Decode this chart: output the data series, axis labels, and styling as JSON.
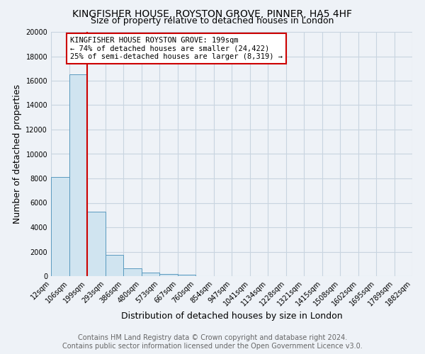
{
  "title": "KINGFISHER HOUSE, ROYSTON GROVE, PINNER, HA5 4HF",
  "subtitle": "Size of property relative to detached houses in London",
  "xlabel": "Distribution of detached houses by size in London",
  "ylabel": "Number of detached properties",
  "bar_values": [
    8100,
    16500,
    5300,
    1750,
    650,
    300,
    150,
    100,
    0,
    0,
    0,
    0,
    0,
    0,
    0,
    0,
    0,
    0,
    0,
    0
  ],
  "bin_edges": [
    12,
    106,
    199,
    293,
    386,
    480,
    573,
    667,
    760,
    854,
    947,
    1041,
    1134,
    1228,
    1321,
    1415,
    1508,
    1602,
    1695,
    1789,
    1882
  ],
  "tick_labels": [
    "12sqm",
    "106sqm",
    "199sqm",
    "293sqm",
    "386sqm",
    "480sqm",
    "573sqm",
    "667sqm",
    "760sqm",
    "854sqm",
    "947sqm",
    "1041sqm",
    "1134sqm",
    "1228sqm",
    "1321sqm",
    "1415sqm",
    "1508sqm",
    "1602sqm",
    "1695sqm",
    "1789sqm",
    "1882sqm"
  ],
  "bar_color": "#d0e4f0",
  "bar_edge_color": "#5a9abf",
  "property_value": 199,
  "property_label": "KINGFISHER HOUSE ROYSTON GROVE: 199sqm",
  "annotation_line1": "← 74% of detached houses are smaller (24,422)",
  "annotation_line2": "25% of semi-detached houses are larger (8,319) →",
  "annotation_box_color": "#ffffff",
  "annotation_box_edge_color": "#cc0000",
  "vline_color": "#cc0000",
  "ylim": [
    0,
    20000
  ],
  "yticks": [
    0,
    2000,
    4000,
    6000,
    8000,
    10000,
    12000,
    14000,
    16000,
    18000,
    20000
  ],
  "footer_line1": "Contains HM Land Registry data © Crown copyright and database right 2024.",
  "footer_line2": "Contains public sector information licensed under the Open Government Licence v3.0.",
  "background_color": "#eef2f7",
  "plot_bg_color": "#eef2f7",
  "grid_color": "#c8d4e0",
  "title_fontsize": 10,
  "subtitle_fontsize": 9,
  "axis_label_fontsize": 9,
  "tick_fontsize": 7,
  "footer_fontsize": 7,
  "annotation_fontsize": 7.5
}
